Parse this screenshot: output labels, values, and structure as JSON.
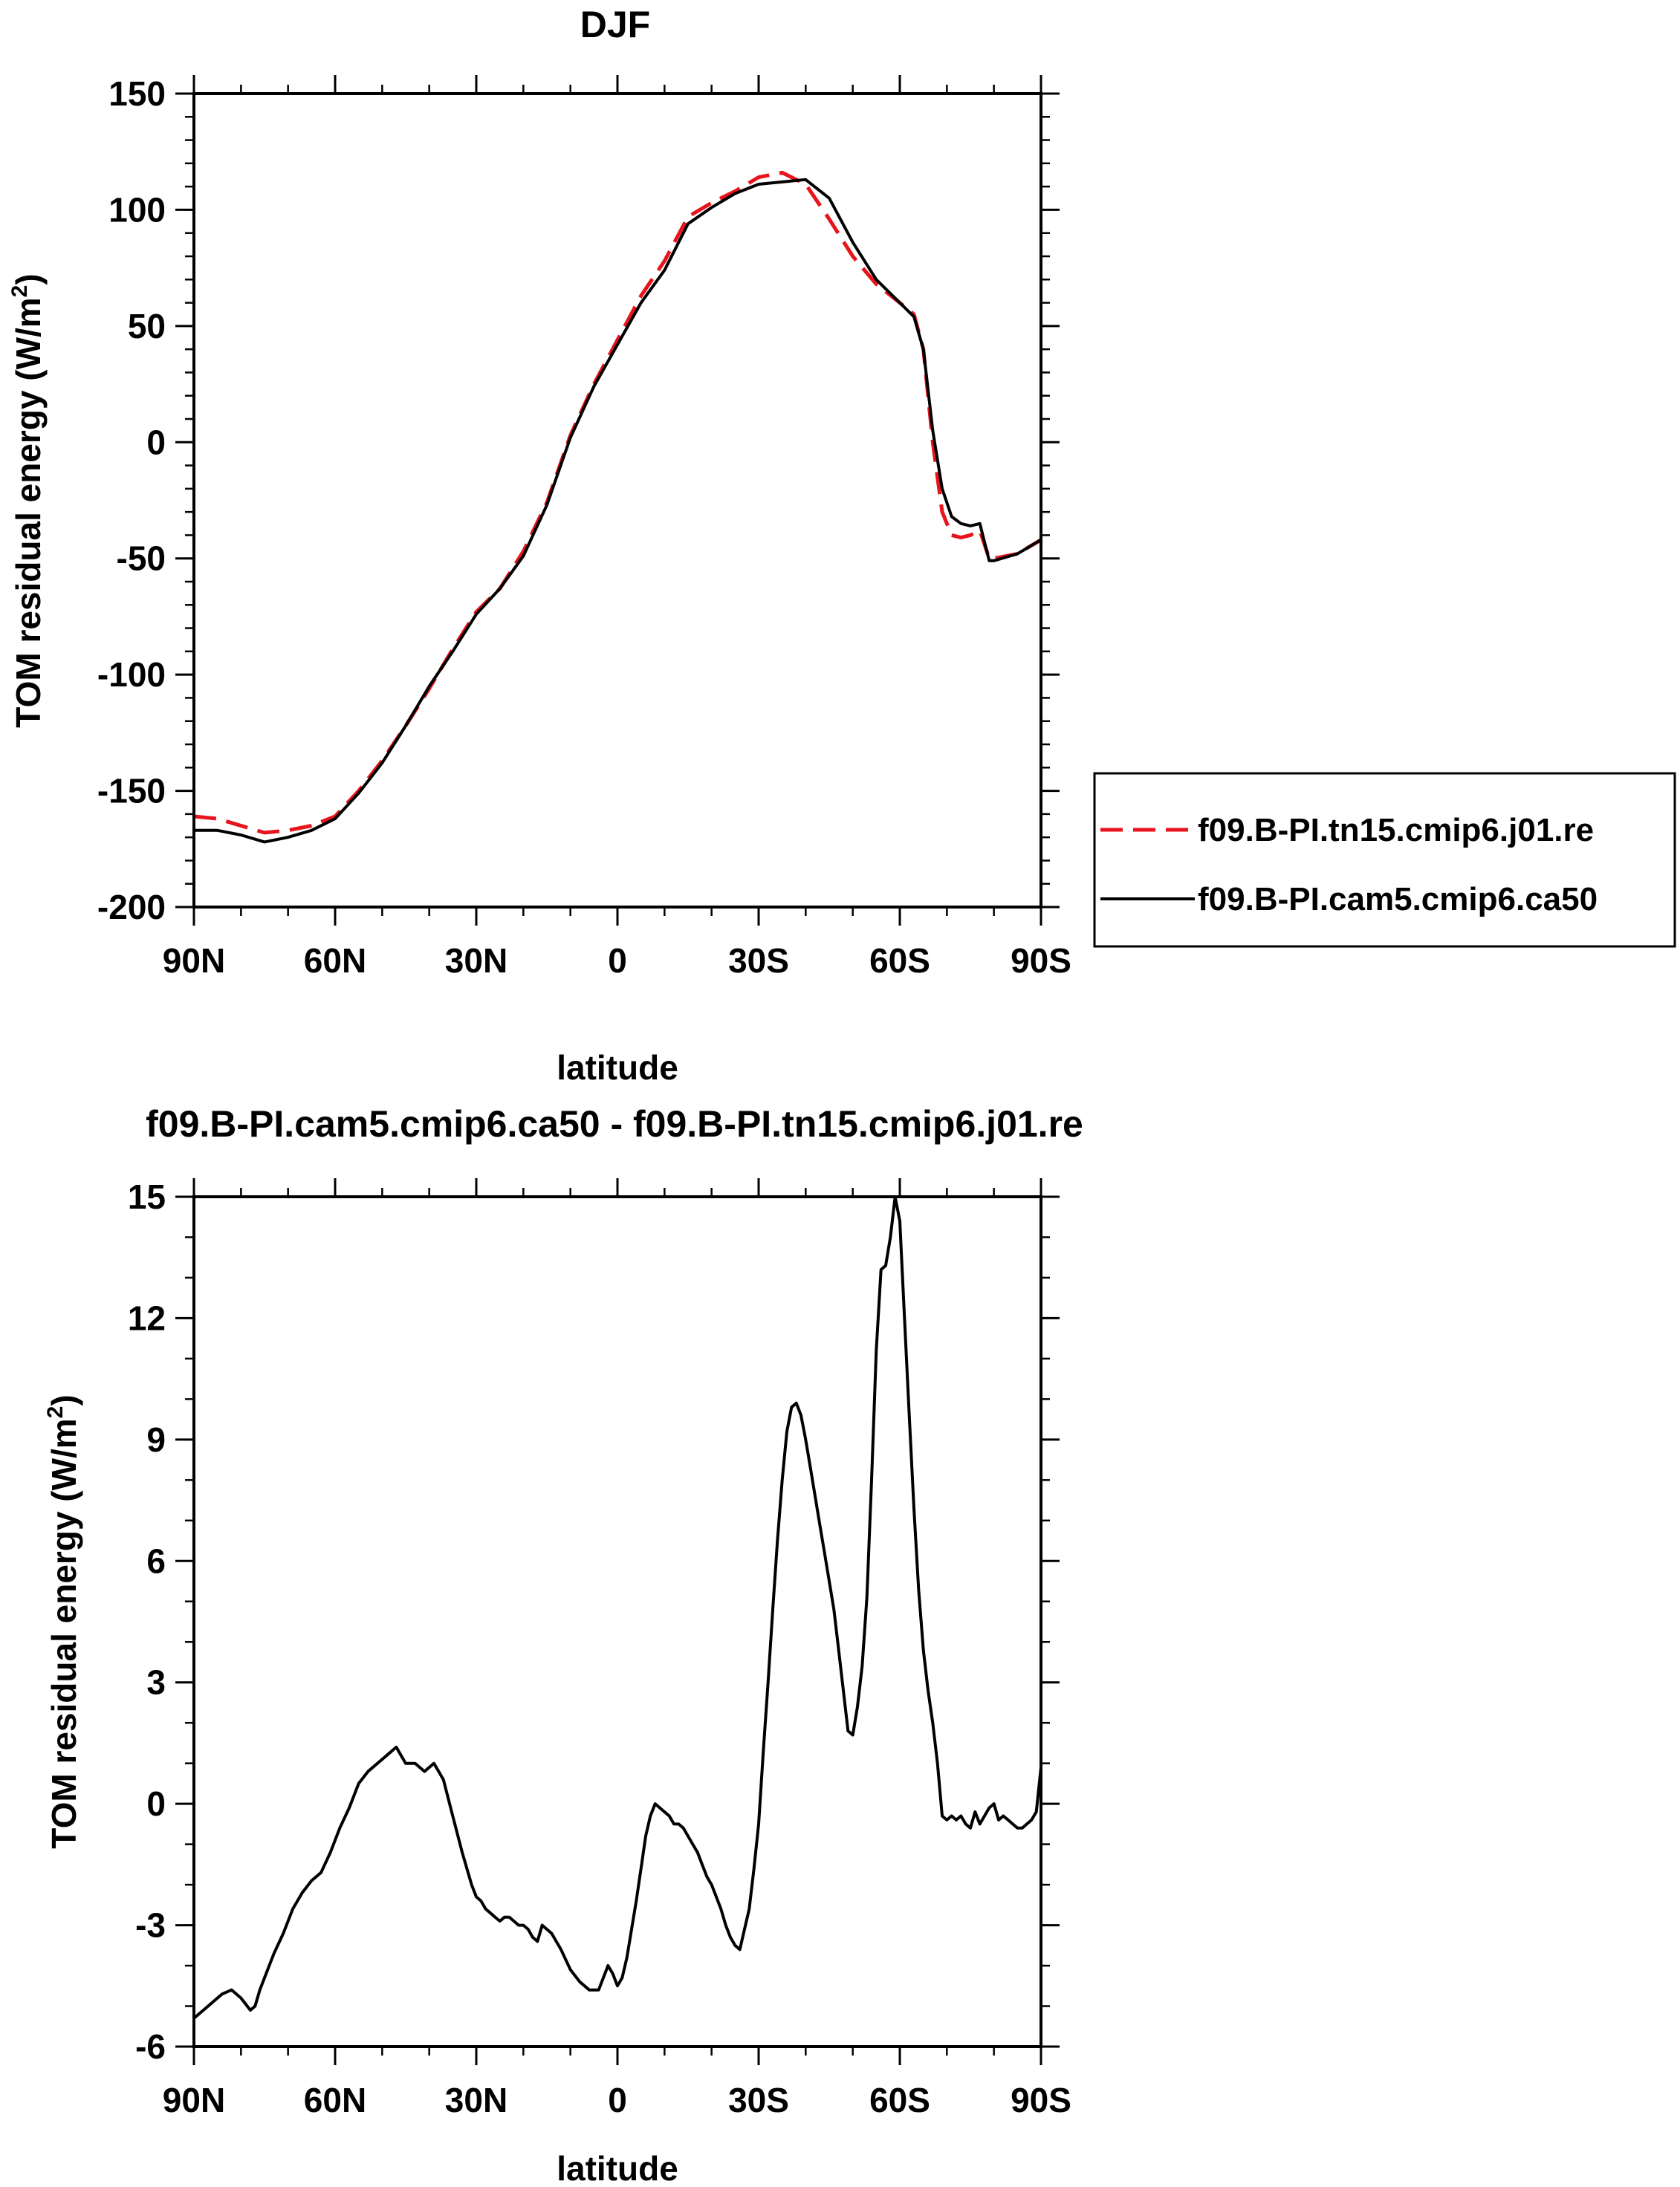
{
  "chart_data": [
    {
      "type": "line",
      "title": "DJF",
      "xlabel": "latitude",
      "ylabel": "TOM residual energy (W/m",
      "ylabel_sup": "2",
      "ylabel_close": ")",
      "xlim": [
        90,
        -90
      ],
      "ylim": [
        -200,
        150
      ],
      "x_ticks": [
        90,
        60,
        30,
        0,
        -30,
        -60,
        -90
      ],
      "x_tick_labels": [
        "90N",
        "60N",
        "30N",
        "0",
        "30S",
        "60S",
        "90S"
      ],
      "y_ticks": [
        150,
        100,
        50,
        0,
        -50,
        -100,
        -150,
        -200
      ],
      "y_tick_labels": [
        "150",
        "100",
        "50",
        "0",
        "-50",
        "-100",
        "-150",
        "-200"
      ],
      "legend_position": "right",
      "series": [
        {
          "name": "f09.B-PI.tn15.cmip6.j01.re",
          "color": "#e8141c",
          "dash": "dashed",
          "x": [
            90,
            85,
            80,
            75,
            70,
            65,
            60,
            55,
            50,
            45,
            40,
            35,
            30,
            25,
            20,
            15,
            10,
            5,
            0,
            -5,
            -10,
            -15,
            -20,
            -25,
            -30,
            -35,
            -40,
            -45,
            -50,
            -55,
            -60,
            -63,
            -65,
            -67,
            -69,
            -71,
            -73,
            -75,
            -77,
            -79,
            -80,
            -85,
            -90
          ],
          "values": [
            -161,
            -162,
            -165,
            -168,
            -167,
            -165,
            -161,
            -150,
            -137,
            -122,
            -106,
            -89,
            -73,
            -63,
            -47,
            -26,
            3,
            25,
            44,
            63,
            78,
            97,
            103,
            108,
            114,
            116,
            111,
            96,
            80,
            68,
            60,
            55,
            40,
            0,
            -30,
            -40,
            -41,
            -40,
            -38,
            -50,
            -50,
            -48,
            -42
          ]
        },
        {
          "name": "f09.B-PI.cam5.cmip6.ca50",
          "color": "#000000",
          "dash": "solid",
          "x": [
            90,
            85,
            80,
            75,
            70,
            65,
            60,
            55,
            50,
            45,
            40,
            35,
            30,
            25,
            20,
            15,
            10,
            5,
            0,
            -5,
            -10,
            -15,
            -20,
            -25,
            -30,
            -35,
            -40,
            -45,
            -50,
            -55,
            -60,
            -63,
            -65,
            -67,
            -69,
            -71,
            -73,
            -75,
            -77,
            -79,
            -80,
            -85,
            -90
          ],
          "values": [
            -167,
            -167,
            -169,
            -172,
            -170,
            -167,
            -162,
            -151,
            -138,
            -122,
            -105,
            -90,
            -74,
            -63,
            -49,
            -27,
            2,
            24,
            42,
            60,
            74,
            94,
            101,
            107,
            111,
            112,
            113,
            105,
            86,
            70,
            60,
            54,
            40,
            5,
            -20,
            -32,
            -35,
            -36,
            -35,
            -51,
            -51,
            -48,
            -42
          ]
        }
      ]
    },
    {
      "type": "line",
      "title": "f09.B-PI.cam5.cmip6.ca50 - f09.B-PI.tn15.cmip6.j01.re",
      "xlabel": "latitude",
      "ylabel": "TOM residual energy (W/m",
      "ylabel_sup": "2",
      "ylabel_close": ")",
      "xlim": [
        90,
        -90
      ],
      "ylim": [
        -6,
        15
      ],
      "x_ticks": [
        90,
        60,
        30,
        0,
        -30,
        -60,
        -90
      ],
      "x_tick_labels": [
        "90N",
        "60N",
        "30N",
        "0",
        "30S",
        "60S",
        "90S"
      ],
      "y_ticks": [
        15,
        12,
        9,
        6,
        3,
        0,
        -3,
        -6
      ],
      "y_tick_labels": [
        "15",
        "12",
        "9",
        "6",
        "3",
        "0",
        "-3",
        "-6"
      ],
      "series": [
        {
          "color": "#000000",
          "dash": "solid",
          "x": [
            90,
            88,
            86,
            84,
            82,
            80,
            78,
            77,
            76,
            75,
            73,
            71,
            69,
            67,
            65,
            63,
            61,
            59,
            57,
            55,
            53,
            51,
            49,
            47,
            45,
            43,
            41,
            39,
            37,
            35,
            33,
            31,
            30,
            29,
            28,
            27,
            26,
            25,
            24,
            23,
            22,
            21,
            20,
            19,
            18,
            17,
            16,
            14,
            12,
            10,
            8,
            6,
            4,
            2,
            1,
            0,
            -1,
            -2,
            -3,
            -4,
            -5,
            -6,
            -7,
            -8,
            -9,
            -10,
            -11,
            -12,
            -13,
            -14,
            -15,
            -16,
            -17,
            -18,
            -19,
            -20,
            -21,
            -22,
            -23,
            -24,
            -25,
            -26,
            -27,
            -28,
            -29,
            -30,
            -31,
            -32,
            -33,
            -34,
            -35,
            -36,
            -37,
            -38,
            -39,
            -40,
            -41,
            -42,
            -43,
            -44,
            -45,
            -46,
            -47,
            -48,
            -49,
            -50,
            -51,
            -52,
            -53,
            -54,
            -55,
            -56,
            -57,
            -58,
            -59,
            -60,
            -61,
            -62,
            -63,
            -64,
            -65,
            -66,
            -67,
            -68,
            -69,
            -70,
            -71,
            -72,
            -73,
            -74,
            -75,
            -76,
            -77,
            -78,
            -79,
            -80,
            -81,
            -82,
            -83,
            -84,
            -85,
            -86,
            -87,
            -88,
            -89,
            -90
          ],
          "values": [
            -5.3,
            -5.1,
            -4.9,
            -4.7,
            -4.6,
            -4.8,
            -5.1,
            -5.0,
            -4.6,
            -4.3,
            -3.7,
            -3.2,
            -2.6,
            -2.2,
            -1.9,
            -1.7,
            -1.2,
            -0.6,
            -0.1,
            0.5,
            0.8,
            1.0,
            1.2,
            1.4,
            1.0,
            1.0,
            0.8,
            1.0,
            0.6,
            -0.3,
            -1.2,
            -2.0,
            -2.3,
            -2.4,
            -2.6,
            -2.7,
            -2.8,
            -2.9,
            -2.8,
            -2.8,
            -2.9,
            -3.0,
            -3.0,
            -3.1,
            -3.3,
            -3.4,
            -3.0,
            -3.2,
            -3.6,
            -4.1,
            -4.4,
            -4.6,
            -4.6,
            -4.0,
            -4.2,
            -4.5,
            -4.3,
            -3.8,
            -3.1,
            -2.4,
            -1.6,
            -0.8,
            -0.3,
            0.0,
            -0.1,
            -0.2,
            -0.3,
            -0.5,
            -0.5,
            -0.6,
            -0.8,
            -1.0,
            -1.2,
            -1.5,
            -1.8,
            -2.0,
            -2.3,
            -2.6,
            -3.0,
            -3.3,
            -3.5,
            -3.6,
            -3.1,
            -2.6,
            -1.6,
            -0.5,
            1.3,
            3.0,
            4.8,
            6.5,
            8.0,
            9.2,
            9.8,
            9.9,
            9.6,
            9.0,
            8.3,
            7.6,
            6.9,
            6.2,
            5.5,
            4.8,
            3.8,
            2.8,
            1.8,
            1.7,
            2.4,
            3.4,
            5.1,
            8.0,
            11.2,
            13.2,
            13.3,
            14.0,
            15.0,
            14.4,
            12.0,
            9.6,
            7.3,
            5.3,
            3.8,
            2.8,
            2.0,
            1.0,
            -0.3,
            -0.4,
            -0.3,
            -0.4,
            -0.3,
            -0.5,
            -0.6,
            -0.2,
            -0.5,
            -0.3,
            -0.1,
            0.0,
            -0.4,
            -0.3,
            -0.4,
            -0.5,
            -0.6,
            -0.6,
            -0.5,
            -0.4,
            -0.2,
            0.9
          ]
        }
      ]
    }
  ]
}
